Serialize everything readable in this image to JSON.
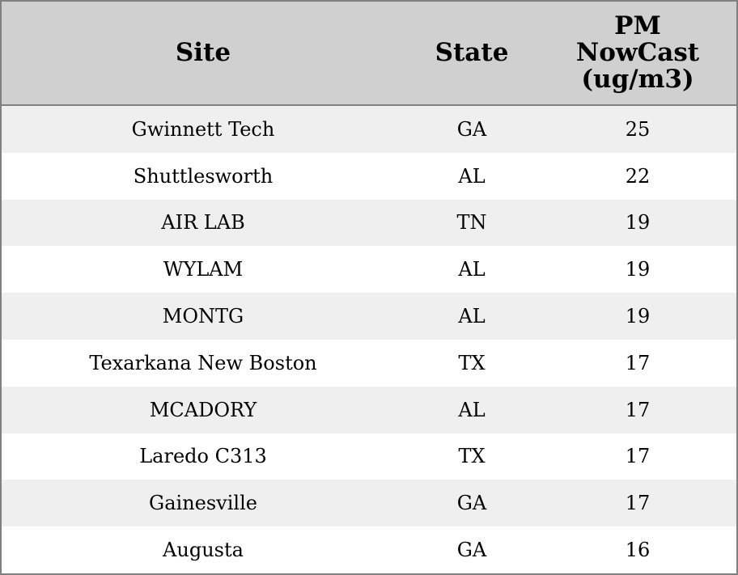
{
  "table": {
    "header": [
      "Site",
      "State",
      "PM NowCast (ug/m3)"
    ],
    "rows": [
      [
        "Gwinnett Tech",
        "GA",
        25
      ],
      [
        "Shuttlesworth",
        "AL",
        22
      ],
      [
        "AIR LAB",
        "TN",
        19
      ],
      [
        "WYLAM",
        "AL",
        19
      ],
      [
        "MONTG",
        "AL",
        19
      ],
      [
        "Texarkana New Boston",
        "TX",
        17
      ],
      [
        "MCADORY",
        "AL",
        17
      ],
      [
        "Laredo C313",
        "TX",
        17
      ],
      [
        "Gainesville",
        "GA",
        17
      ],
      [
        "Augusta",
        "GA",
        16
      ]
    ]
  }
}
